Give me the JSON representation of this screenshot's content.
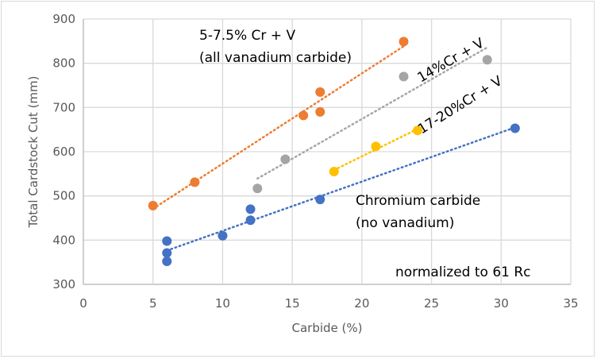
{
  "chart_data": {
    "type": "scatter",
    "title": "",
    "xlabel": "Carbide (%)",
    "ylabel": "Total Cardstock Cut (mm)",
    "xlim": [
      0,
      35
    ],
    "ylim": [
      300,
      900
    ],
    "xticks": [
      0,
      5,
      10,
      15,
      20,
      25,
      30,
      35
    ],
    "yticks": [
      300,
      400,
      500,
      600,
      700,
      800,
      900
    ],
    "grid": true,
    "legend": "none",
    "series": [
      {
        "name": "5-7.5% Cr + V (all vanadium carbide)",
        "color": "#ed7d31",
        "trendline": "linear",
        "points": [
          [
            5,
            478
          ],
          [
            8,
            531
          ],
          [
            15.8,
            682
          ],
          [
            17,
            735
          ],
          [
            17,
            690
          ],
          [
            23,
            849
          ]
        ]
      },
      {
        "name": "14%Cr + V",
        "color": "#a5a5a5",
        "trendline": "linear",
        "points": [
          [
            12.5,
            517
          ],
          [
            14.5,
            583
          ],
          [
            23,
            770
          ],
          [
            29,
            808
          ]
        ]
      },
      {
        "name": "17-20%Cr + V",
        "color": "#ffc000",
        "trendline": "linear",
        "points": [
          [
            18,
            555
          ],
          [
            21,
            612
          ],
          [
            24,
            648
          ]
        ]
      },
      {
        "name": "Chromium carbide (no vanadium)",
        "color": "#4472c4",
        "trendline": "linear",
        "points": [
          [
            6,
            398
          ],
          [
            6,
            371
          ],
          [
            6,
            352
          ],
          [
            10,
            410
          ],
          [
            12,
            470
          ],
          [
            12,
            445
          ],
          [
            17,
            492
          ],
          [
            31,
            653
          ]
        ]
      }
    ],
    "annotations": [
      {
        "id": "orange-label-1",
        "text": "5-7.5% Cr + V"
      },
      {
        "id": "orange-label-2",
        "text": "(all vanadium carbide)"
      },
      {
        "id": "gray-label",
        "text": "14%Cr + V"
      },
      {
        "id": "yellow-label",
        "text": "17-20%Cr + V"
      },
      {
        "id": "blue-label-1",
        "text": "Chromium carbide"
      },
      {
        "id": "blue-label-2",
        "text": "(no vanadium)"
      },
      {
        "id": "note",
        "text": "normalized to 61 Rc"
      }
    ]
  }
}
